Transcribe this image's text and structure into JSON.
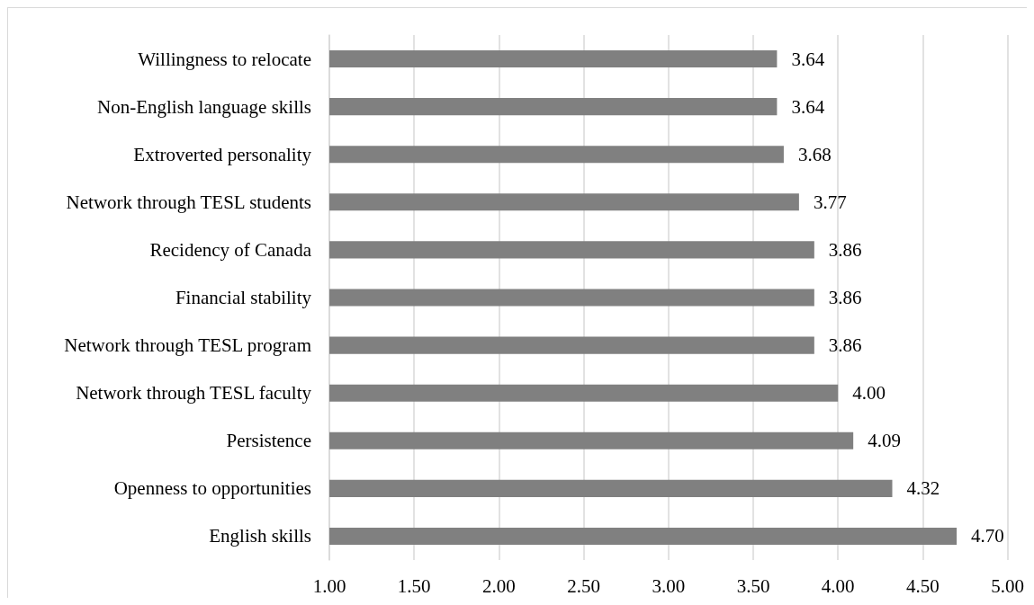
{
  "chart_data": {
    "type": "bar",
    "orientation": "horizontal",
    "categories": [
      "Willingness to relocate",
      "Non-English language skills",
      "Extroverted personality",
      "Network through TESL students",
      "Recidency of Canada",
      "Financial stability",
      "Network through TESL program",
      "Network through TESL faculty",
      "Persistence",
      "Openness to opportunities",
      "English skills"
    ],
    "values": [
      3.64,
      3.64,
      3.68,
      3.77,
      3.86,
      3.86,
      3.86,
      4.0,
      4.09,
      4.32,
      4.7
    ],
    "value_labels": [
      "3.64",
      "3.64",
      "3.68",
      "3.77",
      "3.86",
      "3.86",
      "3.86",
      "4.00",
      "4.09",
      "4.32",
      "4.70"
    ],
    "color": "#808080",
    "xlim": [
      1,
      5
    ],
    "xticks": [
      {
        "value": 1,
        "label": "1.00"
      },
      {
        "value": 1.5,
        "label": "1.50"
      },
      {
        "value": 2,
        "label": "2.00"
      },
      {
        "value": 2.5,
        "label": "2.50"
      },
      {
        "value": 3,
        "label": "3.00"
      },
      {
        "value": 3.5,
        "label": "3.50"
      },
      {
        "value": 4,
        "label": "4.00"
      },
      {
        "value": 4.5,
        "label": "4.50"
      },
      {
        "value": 5,
        "label": "5.00"
      }
    ],
    "grid": "x"
  }
}
